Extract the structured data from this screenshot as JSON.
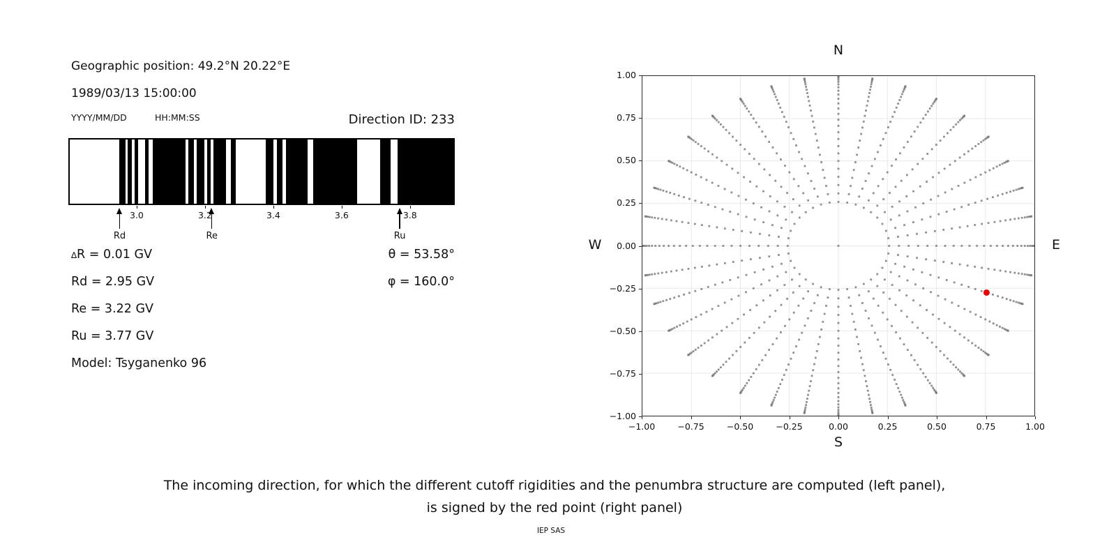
{
  "header": {
    "geo_position": "Geographic position: 49.2°N 20.22°E",
    "datetime": "1989/03/13 15:00:00",
    "date_format_hint": "YYYY/MM/DD",
    "time_format_hint": "HH:MM:SS",
    "direction_id": "Direction ID: 233"
  },
  "caption": {
    "line1": "The incoming direction, for which the different cutoff rigidities and the penumbra structure are computed (left panel),",
    "line2": "is signed by the red point (right panel)",
    "credit": "IEP SAS"
  },
  "chart_data": [
    {
      "type": "bar",
      "name": "penumbra-structure-barcode",
      "description": "Cutoff rigidity penumbra: black bands = allowed rigidity intervals, white = forbidden",
      "xlim": [
        2.8,
        3.931
      ],
      "xunit": "GV",
      "bar_color": "#000000",
      "background_color": "#ffffff",
      "xticks": [
        {
          "label": "3.0",
          "value": 3.0
        },
        {
          "label": "3.2",
          "value": 3.2
        },
        {
          "label": "3.4",
          "value": 3.4
        },
        {
          "label": "3.6",
          "value": 3.6
        },
        {
          "label": "3.8",
          "value": 3.8
        }
      ],
      "allowed_segments_gv": [
        [
          2.947,
          2.964
        ],
        [
          2.971,
          2.982
        ],
        [
          2.991,
          3.001
        ],
        [
          3.023,
          3.033
        ],
        [
          3.045,
          3.141
        ],
        [
          3.149,
          3.166
        ],
        [
          3.174,
          3.197
        ],
        [
          3.206,
          3.216
        ],
        [
          3.224,
          3.26
        ],
        [
          3.275,
          3.29
        ],
        [
          3.377,
          3.401
        ],
        [
          3.411,
          3.428
        ],
        [
          3.437,
          3.501
        ],
        [
          3.518,
          3.648
        ],
        [
          3.716,
          3.746
        ],
        [
          3.767,
          3.931
        ]
      ],
      "arrows": [
        {
          "label": "Rd",
          "gv": 2.95
        },
        {
          "label": "Re",
          "gv": 3.22
        },
        {
          "label": "Ru",
          "gv": 3.77
        }
      ],
      "annotations": {
        "delta_r": "∆R = 0.01 GV",
        "rd": "Rd = 2.95 GV",
        "re": "Re = 3.22 GV",
        "ru": "Ru = 3.77 GV",
        "model": "Model: Tsyganenko 96",
        "theta": "θ = 53.58°",
        "phi": "φ = 160.0°"
      }
    },
    {
      "type": "scatter",
      "name": "incoming-direction-grid",
      "description": "Grid of incoming directions: 36 azimuthal spokes (10° steps), dot radius = sin(zenith) for zenith 15°..90° in 3° steps, plus a central vertical-incidence dot; selected direction shown as red point",
      "xlim": [
        -1,
        1
      ],
      "ylim": [
        -1,
        1
      ],
      "grid": true,
      "grid_color": "#e9e9e9",
      "dot_color": "#7c7c7c",
      "xticks": [
        "−1.00",
        "−0.75",
        "−0.50",
        "−0.25",
        "0.00",
        "0.25",
        "0.50",
        "0.75",
        "1.00"
      ],
      "yticks": [
        "1.00",
        "0.75",
        "0.50",
        "0.25",
        "0.00",
        "−0.25",
        "−0.50",
        "−0.75",
        "−1.00"
      ],
      "compass": {
        "n": "N",
        "s": "S",
        "e": "E",
        "w": "W"
      },
      "grid_generator": {
        "azimuth_step_deg": 10,
        "zenith_start_deg": 15,
        "zenith_end_deg": 90,
        "zenith_step_deg": 3,
        "radius_rule": "sin(zenith)",
        "center_dot": true
      },
      "red_point": {
        "x": 0.756,
        "y": -0.275,
        "color": "#ee0000",
        "zenith_deg": 53.58,
        "azimuth_deg": 160.0
      }
    }
  ]
}
